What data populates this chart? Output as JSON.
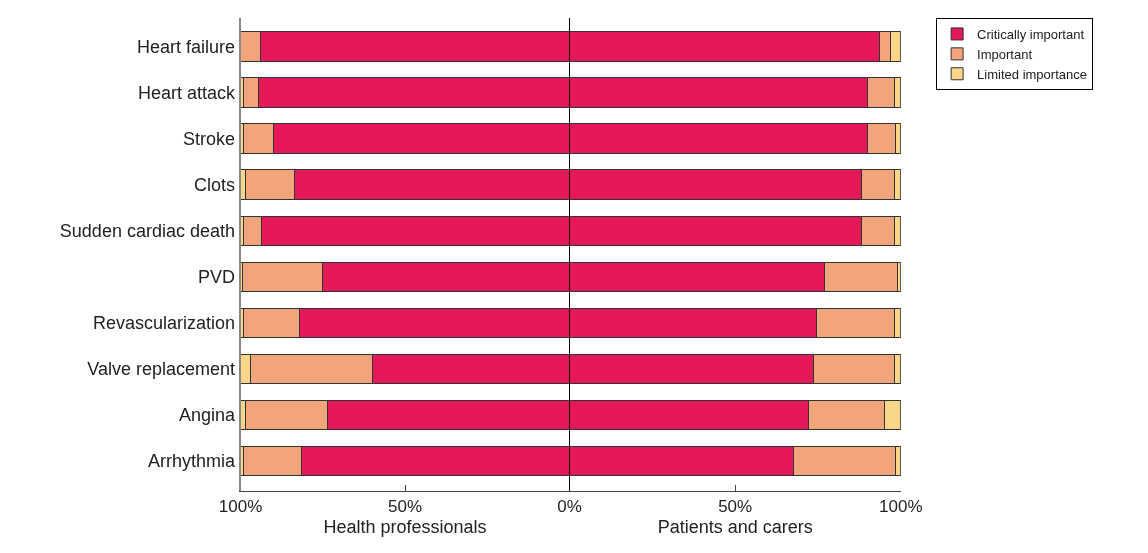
{
  "chart_data": [
    {
      "type": "bar",
      "orientation": "horizontal",
      "stacked": true,
      "xlabel": "Health professionals",
      "categories": [
        "Heart failure",
        "Heart attack",
        "Stroke",
        "Clots",
        "Sudden cardiac death",
        "PVD",
        "Revascularization",
        "Valve replacement",
        "Angina",
        "Arrhythmia"
      ],
      "xlim": [
        100,
        0
      ],
      "xticks": [
        {
          "value": 100,
          "label": "100%"
        },
        {
          "value": 50,
          "label": "50%"
        }
      ],
      "series": [
        {
          "color": "#e5195a",
          "values": [
            94,
            94.5,
            90,
            83.5,
            93.5,
            75,
            82,
            60,
            73.5,
            81.5
          ]
        },
        {
          "color": "#f2a47a",
          "values": [
            6,
            4.5,
            9,
            15,
            5.5,
            24.5,
            17,
            37,
            25,
            17.5
          ]
        },
        {
          "color": "#fad689",
          "values": [
            0,
            1,
            1,
            1.5,
            1,
            0.5,
            1,
            3,
            1.5,
            1
          ]
        }
      ]
    },
    {
      "type": "bar",
      "orientation": "horizontal",
      "stacked": true,
      "xlabel": "Patients and carers",
      "categories": [
        "Heart failure",
        "Heart attack",
        "Stroke",
        "Clots",
        "Sudden cardiac death",
        "PVD",
        "Revascularization",
        "Valve replacement",
        "Angina",
        "Arrhythmia"
      ],
      "xlim": [
        0,
        100
      ],
      "xticks": [
        {
          "value": 0,
          "label": "0%"
        },
        {
          "value": 50,
          "label": "50%"
        },
        {
          "value": 100,
          "label": "100%"
        }
      ],
      "tick_labels": "x",
      "legend": "top right",
      "series": [
        {
          "name": "Critically important",
          "color": "#e5195a",
          "values": [
            93.5,
            90,
            90,
            88,
            88,
            77,
            74.5,
            73.5,
            72,
            67.5
          ]
        },
        {
          "name": "Important",
          "color": "#f2a47a",
          "values": [
            3.5,
            8,
            8.5,
            10,
            10,
            22,
            23.5,
            24.5,
            23,
            31
          ]
        },
        {
          "name": "Limited importance",
          "color": "#fad689",
          "values": [
            3,
            2,
            1.5,
            2,
            2,
            1,
            2,
            2,
            5,
            1.5
          ]
        }
      ]
    }
  ]
}
